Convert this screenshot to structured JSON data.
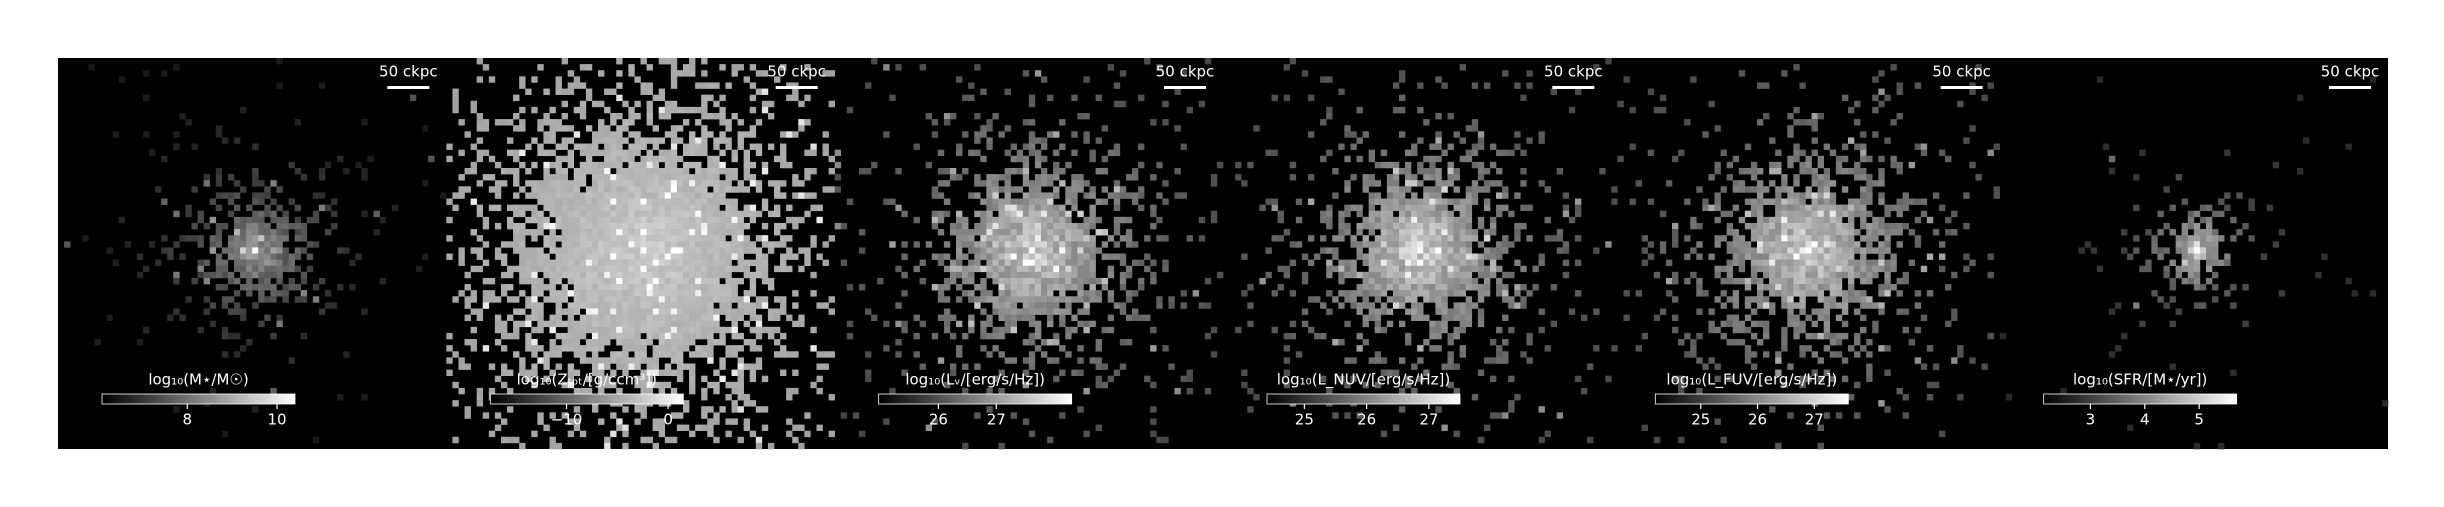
{
  "panels": [
    {
      "scale_bar": "50 ckpc",
      "colorbar": {
        "label": "log₁₀(M⋆/M☉)",
        "lim": [
          6.1,
          10.4
        ],
        "ticks": [
          8,
          10
        ]
      }
    },
    {
      "scale_bar": "50 ckpc",
      "colorbar": {
        "label": "log₁₀(Zₜₒₜ/[g/ccm³])",
        "lim": [
          -17.5,
          1.5
        ],
        "ticks": [
          {
            "value": -10,
            "label": "−10"
          },
          0
        ]
      }
    },
    {
      "scale_bar": "50 ckpc",
      "colorbar": {
        "label": "log₁₀(Lᵥ/[erg/s/Hz])",
        "lim": [
          24.97,
          28.3
        ],
        "ticks": [
          26,
          27
        ]
      }
    },
    {
      "scale_bar": "50 ckpc",
      "colorbar": {
        "label": "log₁₀(L_NUV/[erg/s/Hz])",
        "lim": [
          24.4,
          27.5
        ],
        "ticks": [
          25,
          26,
          27
        ]
      }
    },
    {
      "scale_bar": "50 ckpc",
      "colorbar": {
        "label": "log₁₀(L_FUV/[erg/s/Hz])",
        "lim": [
          24.2,
          27.6
        ],
        "ticks": [
          25,
          26,
          27
        ]
      }
    },
    {
      "scale_bar": "50 ckpc",
      "colorbar": {
        "label": "log₁₀(SFR/[M⋆/yr])",
        "lim": [
          2.14,
          5.69
        ],
        "ticks": [
          3,
          4,
          5
        ]
      }
    }
  ]
}
